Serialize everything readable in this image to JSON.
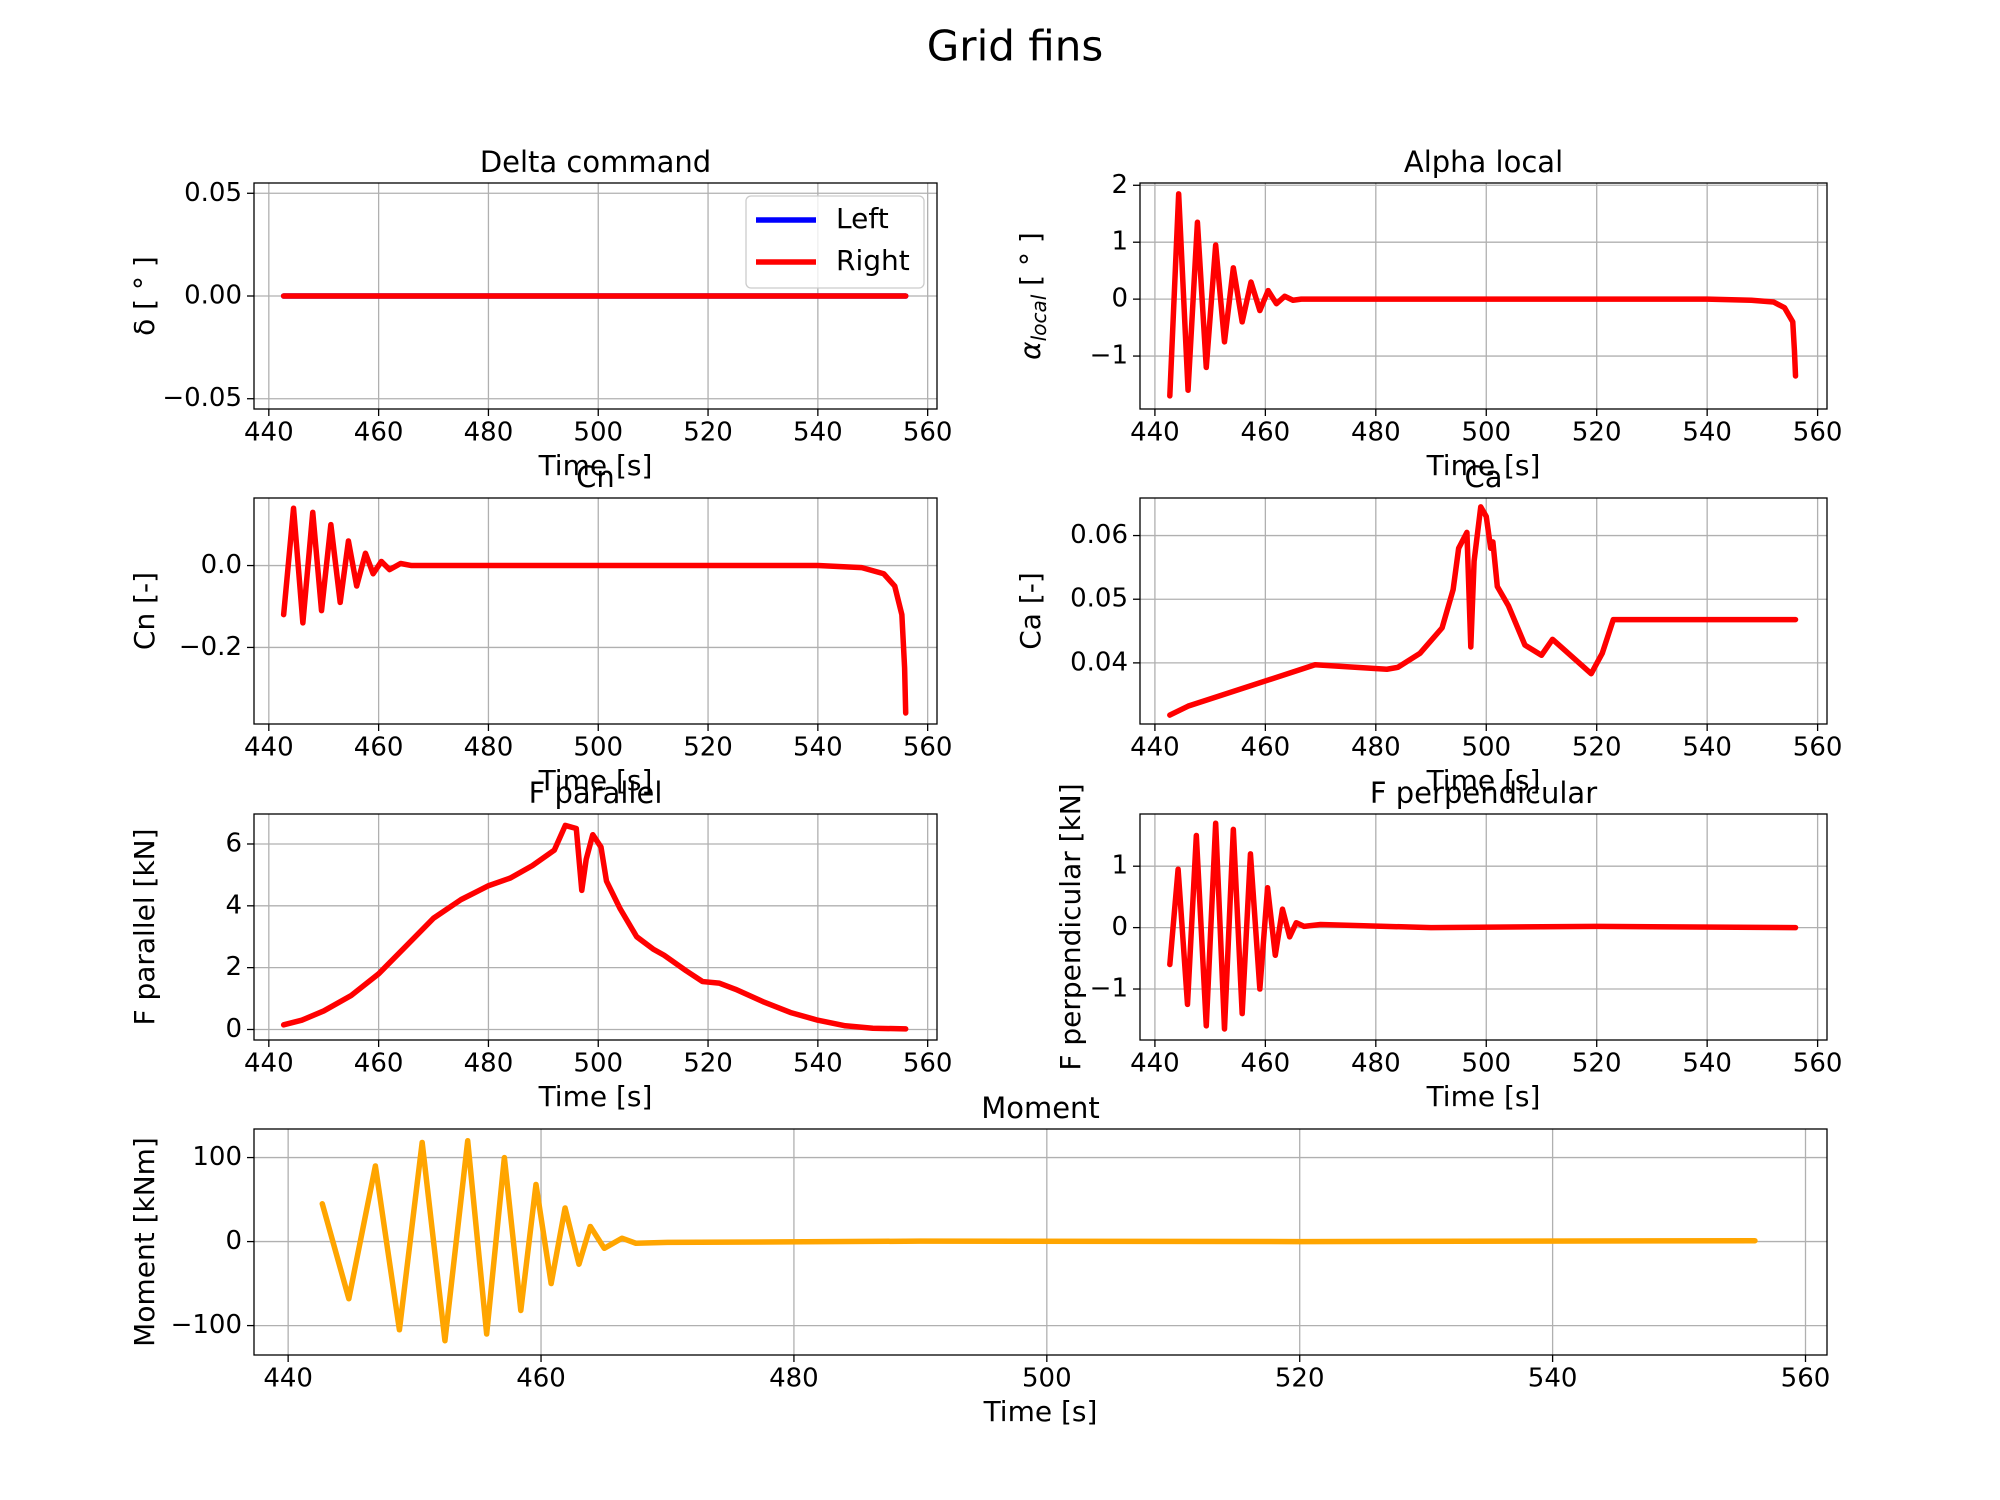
{
  "title": "Grid fins",
  "chart_data": [
    {
      "type": "line",
      "title": "Delta command",
      "xlabel": "Time [s]",
      "ylabel": [
        "δ [ ° ]"
      ],
      "x": [
        442.7,
        556
      ],
      "series": [
        {
          "name": "Left",
          "color": "#0000ff",
          "values": [
            0,
            0
          ]
        },
        {
          "name": "Right",
          "color": "#ff0000",
          "values": [
            0,
            0
          ]
        }
      ],
      "legend": "upper right",
      "grid": true,
      "xlim": [
        437.3,
        561.7
      ],
      "xticks": [
        440,
        460,
        480,
        500,
        520,
        540,
        560
      ],
      "ylim": [
        -0.055,
        0.055
      ],
      "yticks": [
        {
          "value": -0.05,
          "label": "−0.05"
        },
        {
          "value": 0,
          "label": "0.00"
        },
        {
          "value": 0.05,
          "label": "0.05"
        }
      ]
    },
    {
      "type": "line",
      "title": "Alpha local",
      "xlabel": "Time [s]",
      "ylabel": [
        "α",
        "local",
        " [ ° ]"
      ],
      "color": "#ff0000",
      "grid": true,
      "x": [
        442.7,
        444.3,
        446,
        447.7,
        449.3,
        451,
        452.6,
        454.2,
        455.8,
        457.4,
        459,
        460.5,
        462,
        463.5,
        465,
        466.5,
        540,
        548,
        552,
        554,
        555.5,
        555.8,
        556
      ],
      "values": [
        -1.7,
        1.85,
        -1.6,
        1.35,
        -1.2,
        0.95,
        -0.75,
        0.55,
        -0.4,
        0.3,
        -0.2,
        0.15,
        -0.08,
        0.05,
        -0.02,
        0,
        0,
        -0.02,
        -0.05,
        -0.15,
        -0.4,
        -0.9,
        -1.35
      ],
      "xlim": [
        437.3,
        561.7
      ],
      "xticks": [
        440,
        460,
        480,
        500,
        520,
        540,
        560
      ],
      "ylim": [
        -1.93,
        2.04
      ],
      "yticks": [
        {
          "value": -1,
          "label": "−1"
        },
        0,
        1,
        2
      ]
    },
    {
      "type": "line",
      "title": "Cn",
      "xlabel": "Time [s]",
      "ylabel": [
        "Cn [-]"
      ],
      "color": "#ff0000",
      "grid": true,
      "x": [
        442.7,
        444.5,
        446.2,
        448,
        449.6,
        451.3,
        453,
        454.5,
        456,
        457.6,
        459,
        460.5,
        462,
        464,
        466,
        540,
        548,
        552,
        554,
        555.3,
        555.8,
        556
      ],
      "values": [
        -0.12,
        0.14,
        -0.14,
        0.13,
        -0.11,
        0.1,
        -0.09,
        0.06,
        -0.05,
        0.03,
        -0.02,
        0.01,
        -0.01,
        0.005,
        0,
        0,
        -0.005,
        -0.02,
        -0.05,
        -0.12,
        -0.25,
        -0.36
      ],
      "xlim": [
        437.3,
        561.7
      ],
      "xticks": [
        440,
        460,
        480,
        500,
        520,
        540,
        560
      ],
      "ylim": [
        -0.387,
        0.165
      ],
      "yticks": [
        {
          "value": -0.2,
          "label": "−0.2"
        },
        {
          "value": 0,
          "label": "0.0"
        }
      ]
    },
    {
      "type": "line",
      "title": "Ca",
      "xlabel": "Time [s]",
      "ylabel": [
        "Ca [-]"
      ],
      "color": "#ff0000",
      "grid": true,
      "x": [
        442.7,
        446,
        469,
        482,
        484,
        488,
        492,
        494,
        495,
        496.5,
        497.2,
        497.8,
        499,
        500,
        500.8,
        501.2,
        502,
        504,
        507,
        510,
        512,
        519,
        521,
        523,
        556
      ],
      "values": [
        0.0318,
        0.0332,
        0.0397,
        0.039,
        0.0393,
        0.0415,
        0.0455,
        0.0515,
        0.058,
        0.0605,
        0.0425,
        0.056,
        0.0645,
        0.063,
        0.058,
        0.059,
        0.052,
        0.049,
        0.0428,
        0.0412,
        0.0437,
        0.0383,
        0.0415,
        0.0468,
        0.0468
      ],
      "xlim": [
        437.3,
        561.7
      ],
      "xticks": [
        440,
        460,
        480,
        500,
        520,
        540,
        560
      ],
      "ylim": [
        0.0304,
        0.0659
      ],
      "yticks": [
        0.04,
        0.05,
        0.06
      ]
    },
    {
      "type": "line",
      "title": "F parallel",
      "xlabel": "Time [s]",
      "ylabel": [
        "F parallel [kN]"
      ],
      "color": "#ff0000",
      "grid": true,
      "x": [
        442.7,
        446,
        450,
        455,
        460,
        465,
        470,
        475,
        480,
        484,
        488,
        492,
        494,
        496,
        497,
        497.8,
        499,
        500.5,
        501.5,
        504,
        507,
        510,
        512,
        516,
        519,
        522,
        525,
        530,
        535,
        540,
        545,
        550,
        556
      ],
      "values": [
        0.15,
        0.3,
        0.6,
        1.1,
        1.8,
        2.7,
        3.6,
        4.2,
        4.65,
        4.9,
        5.3,
        5.8,
        6.6,
        6.5,
        4.5,
        5.5,
        6.3,
        5.9,
        4.8,
        3.9,
        3.0,
        2.6,
        2.4,
        1.9,
        1.55,
        1.5,
        1.3,
        0.9,
        0.55,
        0.3,
        0.12,
        0.04,
        0.02
      ],
      "xlim": [
        437.3,
        561.7
      ],
      "xticks": [
        440,
        460,
        480,
        500,
        520,
        540,
        560
      ],
      "ylim": [
        -0.34,
        6.97
      ],
      "yticks": [
        0,
        2,
        4,
        6
      ]
    },
    {
      "type": "line",
      "title": "F perpendicular",
      "xlabel": "Time [s]",
      "ylabel": [
        "F perpendicular [kN]"
      ],
      "color": "#ff0000",
      "grid": true,
      "x": [
        442.7,
        444.2,
        445.9,
        447.5,
        449.3,
        451,
        452.6,
        454.2,
        455.8,
        457.3,
        459,
        460.4,
        461.8,
        463.1,
        464.4,
        465.6,
        467,
        470,
        490,
        520,
        556
      ],
      "values": [
        -0.6,
        0.95,
        -1.25,
        1.5,
        -1.6,
        1.7,
        -1.65,
        1.6,
        -1.4,
        1.2,
        -1.0,
        0.65,
        -0.45,
        0.3,
        -0.15,
        0.08,
        0.02,
        0.05,
        0,
        0.02,
        0
      ],
      "xlim": [
        437.3,
        561.7
      ],
      "xticks": [
        440,
        460,
        480,
        500,
        520,
        540,
        560
      ],
      "ylim": [
        -1.83,
        1.85
      ],
      "yticks": [
        {
          "value": -1,
          "label": "−1"
        },
        0,
        1
      ]
    },
    {
      "type": "line",
      "title": "Moment",
      "xlabel": "Time [s]",
      "ylabel": [
        "Moment [kNm]"
      ],
      "color": "#ffa500",
      "grid": true,
      "x": [
        442.7,
        444.8,
        446.9,
        448.8,
        450.6,
        452.4,
        454.2,
        455.7,
        457.1,
        458.4,
        459.6,
        460.8,
        461.9,
        463,
        463.9,
        465,
        466.4,
        467.5,
        470,
        490,
        520,
        556
      ],
      "values": [
        45,
        -68,
        90,
        -105,
        118,
        -118,
        120,
        -110,
        100,
        -82,
        68,
        -50,
        40,
        -27,
        18,
        -8,
        4,
        -2,
        -1,
        0.5,
        0,
        1
      ],
      "xlim": [
        437.3,
        561.7
      ],
      "xticks": [
        440,
        460,
        480,
        500,
        520,
        540,
        560
      ],
      "ylim": [
        -135,
        134
      ],
      "yticks": [
        {
          "value": -100,
          "label": "−100"
        },
        0,
        100
      ]
    }
  ]
}
